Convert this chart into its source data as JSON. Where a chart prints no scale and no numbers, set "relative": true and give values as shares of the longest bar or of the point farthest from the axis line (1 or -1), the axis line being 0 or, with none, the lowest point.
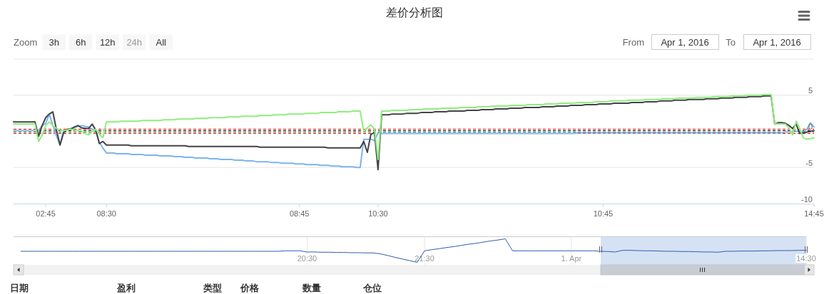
{
  "chart_data": [
    {
      "type": "line",
      "title": "差价分析图",
      "categories": [
        null,
        null,
        null,
        null,
        null,
        null,
        null,
        null,
        null,
        "02:45",
        null,
        null,
        null,
        null,
        null,
        null,
        null,
        null,
        null,
        null,
        null,
        null,
        null,
        null,
        null,
        null,
        "08:30",
        null,
        null,
        null,
        null,
        null,
        null,
        null,
        null,
        null,
        null,
        null,
        null,
        null,
        null,
        null,
        null,
        null,
        null,
        null,
        null,
        null,
        null,
        null,
        null,
        null,
        null,
        null,
        null,
        null,
        null,
        null,
        null,
        null,
        null,
        null,
        null,
        null,
        null,
        null,
        null,
        null,
        null,
        null,
        null,
        null,
        null,
        null,
        null,
        null,
        null,
        null,
        null,
        null,
        "08:45",
        null,
        null,
        null,
        null,
        null,
        null,
        null,
        null,
        null,
        null,
        null,
        null,
        null,
        null,
        null,
        null,
        null,
        null,
        null,
        null,
        null,
        "10:30",
        null,
        null,
        null,
        null,
        null,
        null,
        null,
        null,
        null,
        null,
        null,
        null,
        null,
        null,
        null,
        null,
        null,
        null,
        null,
        null,
        null,
        null,
        null,
        null,
        null,
        null,
        null,
        null,
        null,
        null,
        null,
        null,
        null,
        null,
        null,
        null,
        null,
        null,
        null,
        null,
        null,
        null,
        null,
        null,
        null,
        null,
        null,
        null,
        null,
        null,
        null,
        null,
        null,
        null,
        null,
        null,
        null,
        null,
        null,
        null,
        null,
        null,
        "10:45",
        null,
        null,
        null,
        null,
        null,
        null,
        null,
        null,
        null,
        null,
        null,
        null,
        null,
        null,
        null,
        null,
        null,
        null,
        null,
        null,
        null,
        null,
        null,
        null,
        null,
        null,
        null,
        null,
        null,
        null,
        null,
        null,
        null,
        null,
        null,
        null,
        null,
        null,
        null,
        null,
        null,
        null,
        null,
        null,
        null,
        null,
        null,
        null,
        null,
        null,
        null,
        null,
        null,
        null,
        null,
        null,
        null,
        null,
        "14:45"
      ],
      "ylim": [
        -10,
        10
      ],
      "yticks": [
        -10,
        -5,
        0,
        5,
        {
          "value": 10,
          "label": null
        }
      ],
      "grid": "y",
      "series": [
        {
          "color": "#7cb5ec",
          "values": [
            0.1,
            0.1,
            0.1,
            0.1,
            0.1,
            0.1,
            0.1,
            0.1,
            0.8,
            1.1,
            2.4,
            0.8,
            -0.6,
            -1.9,
            0.1,
            0.2,
            0.4,
            0.5,
            0.7,
            0.8,
            0.7,
            0.6,
            0.3,
            0.1,
            -1.5,
            -2.3,
            -3.0,
            -3.0,
            -3.0,
            -3.1,
            -3.1,
            -3.1,
            -3.1,
            -3.2,
            -3.2,
            -3.2,
            -3.2,
            -3.3,
            -3.3,
            -3.3,
            -3.3,
            -3.4,
            -3.4,
            -3.4,
            -3.4,
            -3.5,
            -3.5,
            -3.5,
            -3.6,
            -3.6,
            -3.6,
            -3.7,
            -3.7,
            -3.7,
            -3.7,
            -3.8,
            -3.8,
            -3.8,
            -3.9,
            -3.9,
            -3.9,
            -3.9,
            -4.0,
            -4.0,
            -4.0,
            -4.1,
            -4.1,
            -4.1,
            -4.2,
            -4.2,
            -4.2,
            -4.2,
            -4.3,
            -4.3,
            -4.3,
            -4.4,
            -4.4,
            -4.4,
            -4.4,
            -4.5,
            -4.5,
            -4.5,
            -4.6,
            -4.6,
            -4.6,
            -4.6,
            -4.7,
            -4.7,
            -4.7,
            -4.8,
            -4.8,
            -4.8,
            -4.9,
            -4.9,
            -4.9,
            -4.9,
            -5.0,
            -5.0,
            -1.1,
            -1.1,
            -1.1,
            -1.3,
            -0.2,
            -0.3,
            -0.3,
            -0.3,
            -0.3,
            -0.3,
            -0.3,
            -0.3,
            -0.3,
            -0.3,
            -0.3,
            -0.3,
            -0.3,
            -0.3,
            -0.3,
            -0.3,
            -0.3,
            -0.3,
            -0.3,
            -0.3,
            -0.3,
            -0.3,
            -0.3,
            -0.3,
            -0.3,
            -0.3,
            -0.3,
            -0.3,
            -0.3,
            -0.3,
            -0.3,
            -0.3,
            -0.3,
            -0.3,
            -0.3,
            -0.3,
            -0.3,
            -0.3,
            -0.3,
            -0.3,
            -0.3,
            -0.3,
            -0.3,
            -0.3,
            -0.3,
            -0.3,
            -0.3,
            -0.3,
            -0.3,
            -0.3,
            -0.3,
            -0.3,
            -0.3,
            -0.3,
            -0.3,
            -0.3,
            -0.2,
            -0.2,
            -0.2,
            -0.2,
            -0.2,
            -0.2,
            -0.2,
            -0.2,
            -0.2,
            -0.2,
            -0.2,
            -0.2,
            -0.2,
            -0.2,
            -0.2,
            -0.2,
            -0.2,
            -0.2,
            -0.2,
            -0.2,
            -0.2,
            -0.2,
            -0.2,
            -0.2,
            -0.2,
            -0.2,
            -0.2,
            -0.2,
            -0.2,
            -0.2,
            -0.2,
            -0.2,
            -0.2,
            -0.2,
            -0.2,
            -0.2,
            -0.2,
            -0.2,
            -0.2,
            -0.2,
            -0.2,
            -0.2,
            -0.2,
            -0.2,
            -0.2,
            -0.2,
            -0.2,
            -0.2,
            -0.2,
            -0.2,
            -0.2,
            -0.2,
            -0.2,
            -0.2,
            -0.2,
            -0.2,
            -0.2,
            -0.2,
            -0.1,
            -0.1,
            -0.1,
            0.0,
            0.0,
            -0.1,
            0.3,
            1.2,
            0.6
          ]
        },
        {
          "color": "#434348",
          "values": [
            1.3,
            1.3,
            1.3,
            1.3,
            1.3,
            1.3,
            1.3,
            -0.7,
            0.8,
            1.9,
            2.4,
            2.7,
            0.2,
            -1.9,
            -0.2,
            0.3,
            0.3,
            0.6,
            0.8,
            0.5,
            0.4,
            0.4,
            1.0,
            0.2,
            -1.7,
            -1.4,
            -1.9,
            -1.9,
            -1.9,
            -1.9,
            -1.9,
            -1.9,
            -1.9,
            -2.0,
            -2.0,
            -2.0,
            -2.0,
            -2.0,
            -2.0,
            -2.0,
            -2.0,
            -2.0,
            -2.0,
            -2.0,
            -2.0,
            -2.0,
            -2.0,
            -2.0,
            -2.0,
            -2.1,
            -2.1,
            -2.1,
            -2.1,
            -2.1,
            -2.1,
            -2.1,
            -2.1,
            -2.1,
            -2.1,
            -2.1,
            -2.1,
            -2.1,
            -2.1,
            -2.1,
            -2.1,
            -2.1,
            -2.1,
            -2.1,
            -2.1,
            -2.2,
            -2.2,
            -2.2,
            -2.2,
            -2.2,
            -2.2,
            -2.2,
            -2.2,
            -2.2,
            -2.2,
            -2.2,
            -2.2,
            -2.2,
            -2.2,
            -2.2,
            -2.2,
            -2.2,
            -2.2,
            -2.2,
            -2.3,
            -2.3,
            -2.3,
            -2.3,
            -2.3,
            -2.3,
            -2.3,
            -2.3,
            -2.3,
            -2.3,
            -1.4,
            -2.9,
            -0.4,
            -0.2,
            -5.3,
            2.3,
            2.3,
            2.3,
            2.4,
            2.4,
            2.4,
            2.4,
            2.5,
            2.5,
            2.5,
            2.5,
            2.6,
            2.6,
            2.6,
            2.6,
            2.7,
            2.7,
            2.7,
            2.7,
            2.8,
            2.8,
            2.8,
            2.8,
            2.8,
            2.9,
            2.9,
            2.9,
            2.9,
            3.0,
            3.0,
            3.0,
            3.0,
            3.1,
            3.1,
            3.1,
            3.1,
            3.2,
            3.2,
            3.2,
            3.2,
            3.3,
            3.3,
            3.3,
            3.3,
            3.3,
            3.4,
            3.4,
            3.4,
            3.4,
            3.5,
            3.5,
            3.5,
            3.5,
            3.6,
            3.6,
            3.6,
            3.6,
            3.7,
            3.7,
            3.7,
            3.7,
            3.8,
            3.8,
            3.8,
            3.8,
            3.9,
            3.9,
            3.9,
            3.9,
            3.9,
            4.0,
            4.0,
            4.0,
            4.0,
            4.1,
            4.1,
            4.1,
            4.1,
            4.2,
            4.2,
            4.2,
            4.2,
            4.3,
            4.3,
            4.3,
            4.3,
            4.4,
            4.4,
            4.4,
            4.4,
            4.4,
            4.5,
            4.5,
            4.5,
            4.5,
            4.6,
            4.6,
            4.6,
            4.6,
            4.7,
            4.7,
            4.7,
            4.7,
            4.8,
            4.8,
            4.8,
            4.8,
            4.9,
            4.9,
            4.9,
            1.0,
            1.2,
            1.2,
            1.1,
            0.8,
            0.4,
            1.0,
            -0.3,
            -0.2,
            -0.1,
            0.0,
            0.1
          ]
        },
        {
          "color": "#90ed7d",
          "values": [
            1.0,
            1.0,
            1.0,
            1.0,
            1.0,
            1.0,
            1.0,
            -1.4,
            -0.5,
            0.8,
            1.3,
            0.8,
            0.4,
            0.2,
            0.1,
            0.2,
            0.3,
            0.2,
            0.1,
            0.0,
            -0.3,
            -0.5,
            0.0,
            0.3,
            -0.4,
            -0.9,
            1.3,
            1.3,
            1.3,
            1.3,
            1.4,
            1.4,
            1.4,
            1.4,
            1.4,
            1.4,
            1.5,
            1.5,
            1.5,
            1.5,
            1.5,
            1.5,
            1.6,
            1.6,
            1.6,
            1.6,
            1.7,
            1.7,
            1.7,
            1.7,
            1.7,
            1.8,
            1.8,
            1.8,
            1.8,
            1.9,
            1.9,
            1.9,
            1.9,
            1.9,
            2.0,
            2.0,
            2.0,
            2.0,
            2.1,
            2.1,
            2.1,
            2.1,
            2.1,
            2.2,
            2.2,
            2.2,
            2.2,
            2.3,
            2.3,
            2.3,
            2.3,
            2.4,
            2.4,
            2.4,
            2.4,
            2.4,
            2.5,
            2.5,
            2.5,
            2.5,
            2.6,
            2.6,
            2.6,
            2.6,
            2.6,
            2.7,
            2.7,
            2.7,
            2.7,
            2.8,
            2.8,
            2.8,
            0.0,
            0.5,
            0.9,
            0.3,
            -3.9,
            2.8,
            2.8,
            2.8,
            2.9,
            2.9,
            2.9,
            2.9,
            2.9,
            3.0,
            3.0,
            3.0,
            3.0,
            3.1,
            3.1,
            3.1,
            3.1,
            3.1,
            3.2,
            3.2,
            3.2,
            3.2,
            3.2,
            3.3,
            3.3,
            3.3,
            3.3,
            3.3,
            3.4,
            3.4,
            3.4,
            3.4,
            3.5,
            3.5,
            3.5,
            3.5,
            3.5,
            3.6,
            3.6,
            3.6,
            3.6,
            3.6,
            3.7,
            3.7,
            3.7,
            3.7,
            3.7,
            3.8,
            3.8,
            3.8,
            3.8,
            3.9,
            3.9,
            3.9,
            3.9,
            3.9,
            4.0,
            4.0,
            4.0,
            4.0,
            4.0,
            4.1,
            4.1,
            4.1,
            4.1,
            4.2,
            4.2,
            4.2,
            4.2,
            4.2,
            4.3,
            4.3,
            4.3,
            4.3,
            4.3,
            4.4,
            4.4,
            4.4,
            4.4,
            4.4,
            4.5,
            4.5,
            4.5,
            4.5,
            4.6,
            4.6,
            4.6,
            4.6,
            4.6,
            4.7,
            4.7,
            4.7,
            4.7,
            4.7,
            4.8,
            4.8,
            4.8,
            4.8,
            4.8,
            4.9,
            4.9,
            4.9,
            4.9,
            5.0,
            5.0,
            5.0,
            5.0,
            5.0,
            5.1,
            5.1,
            5.1,
            1.0,
            1.0,
            1.0,
            1.0,
            0.5,
            -0.5,
            1.4,
            0.4,
            -0.9,
            -1.1,
            -1.0,
            -0.9
          ]
        }
      ],
      "ref_lines": [
        {
          "axis": "y",
          "value": 0.3,
          "color": "#ff0000",
          "line_style": "dashed"
        },
        {
          "axis": "y",
          "value": 0.1,
          "color": "#000000",
          "line_style": "dashed"
        },
        {
          "axis": "y",
          "value": -0.1,
          "color": "#1a7a1a",
          "line_style": "dashed"
        },
        {
          "axis": "y",
          "value": -0.3,
          "color": "#ff0000",
          "line_style": "dashed"
        }
      ],
      "annotations": [
        "Zoom",
        "3h",
        "6h",
        "12h",
        "24h",
        "All",
        "From",
        "Apr 1, 2016",
        "To",
        "Apr 1, 2016"
      ]
    },
    {
      "type": "line",
      "relative": true,
      "grid": "x",
      "tick_labels": "x",
      "categories": [
        null,
        null,
        null,
        null,
        null,
        null,
        null,
        null,
        null,
        null,
        null,
        null,
        null,
        null,
        null,
        null,
        null,
        null,
        null,
        null,
        null,
        null,
        null,
        null,
        null,
        null,
        null,
        null,
        null,
        null,
        null,
        null,
        null,
        null,
        null,
        null,
        null,
        null,
        null,
        null,
        "20:30",
        null,
        null,
        null,
        null,
        null,
        null,
        null,
        null,
        null,
        null,
        null,
        null,
        null,
        null,
        null,
        "21:30",
        null,
        null,
        null,
        null,
        null,
        null,
        null,
        null,
        null,
        null,
        null,
        null,
        null,
        null,
        null,
        null,
        null,
        null,
        null,
        "1. Apr",
        null,
        null,
        null,
        null,
        null,
        null,
        null,
        null,
        null,
        null,
        null,
        null,
        null,
        null,
        null,
        null,
        null,
        null,
        null,
        null,
        null,
        null,
        null,
        null,
        null,
        null,
        null,
        null,
        null,
        null,
        null,
        "14:30"
      ],
      "series": [
        {
          "color": "#335cad",
          "values": [
            null,
            0.47,
            0.47,
            0.47,
            0.47,
            0.47,
            0.47,
            0.47,
            0.47,
            0.47,
            0.47,
            0.47,
            0.47,
            0.47,
            0.47,
            0.47,
            0.47,
            0.47,
            0.47,
            0.47,
            0.47,
            0.47,
            0.47,
            0.47,
            0.47,
            0.47,
            0.47,
            0.47,
            0.47,
            0.47,
            0.47,
            0.47,
            0.47,
            0.47,
            0.47,
            0.47,
            0.47,
            0.49,
            0.49,
            0.49,
            0.44,
            0.44,
            0.43,
            0.43,
            0.42,
            0.42,
            0.41,
            0.41,
            0.4,
            0.4,
            0.36,
            0.29,
            0.21,
            0.14,
            0.07,
            0,
            0.49,
            0.54,
            0.58,
            0.63,
            0.67,
            0.72,
            0.77,
            0.81,
            0.86,
            0.91,
            0.95,
            1,
            0.49,
            0.49,
            0.49,
            0.49,
            0.49,
            0.49,
            0.49,
            0.49,
            0.49,
            0.49,
            0.49,
            0.49,
            0.47,
            0.46,
            0.44,
            0.51,
            0.51,
            0.5,
            0.49,
            0.49,
            0.48,
            0.47,
            0.47,
            0.46,
            0.46,
            0.45,
            0.44,
            0.44,
            0.43,
            0.47,
            0.47,
            0.48,
            0.48,
            0.48,
            0.49,
            0.49,
            0.5,
            0.5,
            0.5,
            0.51,
            0.51
          ]
        }
      ]
    },
    {
      "type": "other",
      "annotations": [
        "日期",
        "盈利",
        "类型",
        "价格",
        "数量",
        "仓位"
      ]
    }
  ]
}
